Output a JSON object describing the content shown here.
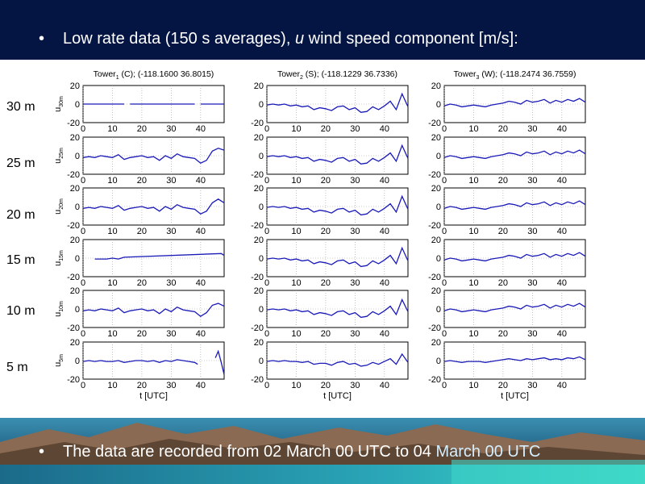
{
  "slide": {
    "bullet_glyph": "•",
    "header_text_before": "Low rate data (150 s averages), ",
    "header_text_var": "u",
    "header_text_after": " wind speed component [m/s]:",
    "footer_text_part1": "The data are recorded from 02 March 00 UTC to 04",
    "footer_text_part2": " March 00 UTC",
    "height_labels": [
      "30 m",
      "25 m",
      "20 m",
      "15 m",
      "10 m",
      "5 m"
    ],
    "colors": {
      "header": "#051543",
      "line": "#1a1ab8",
      "grid": "#999999"
    }
  },
  "chart_data": {
    "type": "line",
    "x_label": "t [UTC]",
    "xlim": [
      0,
      48
    ],
    "ylim": [
      -20,
      20
    ],
    "x_ticks": [
      0,
      10,
      20,
      30,
      40
    ],
    "y_ticks": [
      20,
      0,
      -20
    ],
    "y_tick_labels": [
      "20",
      "0",
      "-20"
    ],
    "ylabels": [
      {
        "base": "u",
        "sub": "30m"
      },
      {
        "base": "u",
        "sub": "25m"
      },
      {
        "base": "u",
        "sub": "20m"
      },
      {
        "base": "u",
        "sub": "15m"
      },
      {
        "base": "u",
        "sub": "10m"
      },
      {
        "base": "u",
        "sub": "5m"
      }
    ],
    "towers": [
      {
        "name": "Tower",
        "index": "1",
        "rest": " (C); (-118.1600 36.8015)"
      },
      {
        "name": "Tower",
        "index": "2",
        "rest": " (S); (-118.1229 36.7336)"
      },
      {
        "name": "Tower",
        "index": "3",
        "rest": " (W); (-118.2474 36.7559)"
      }
    ],
    "series": {
      "tower1": {
        "30m": {
          "x": [
            0,
            4,
            8,
            12,
            14,
            15,
            16,
            20,
            24,
            28,
            32,
            36,
            38,
            39,
            40,
            44,
            48
          ],
          "y": [
            0,
            0,
            0,
            0,
            0,
            null,
            0,
            0,
            0,
            0,
            0,
            0,
            0,
            null,
            0,
            0,
            0
          ]
        },
        "25m": {
          "x": [
            0,
            2,
            4,
            6,
            8,
            10,
            12,
            14,
            16,
            18,
            20,
            22,
            24,
            26,
            28,
            30,
            32,
            34,
            36,
            38,
            40,
            42,
            44,
            46,
            48
          ],
          "y": [
            -2,
            -1,
            -2,
            0,
            -1,
            -2,
            1,
            -4,
            -2,
            -1,
            0,
            -2,
            -1,
            -5,
            0,
            -3,
            2,
            -1,
            -2,
            -3,
            -8,
            -5,
            5,
            8,
            6
          ]
        },
        "20m": {
          "x": [
            0,
            2,
            4,
            6,
            8,
            10,
            12,
            14,
            16,
            18,
            20,
            22,
            24,
            26,
            28,
            30,
            32,
            34,
            36,
            38,
            40,
            42,
            44,
            46,
            48
          ],
          "y": [
            -2,
            -1,
            -2,
            0,
            -1,
            -2,
            1,
            -4,
            -2,
            -1,
            0,
            -2,
            -1,
            -5,
            0,
            -3,
            2,
            -1,
            -2,
            -3,
            -8,
            -5,
            4,
            8,
            4
          ]
        },
        "15m": {
          "x": [
            4,
            6,
            8,
            10,
            12,
            13,
            14,
            47,
            48
          ],
          "y": [
            -1,
            -1,
            -1,
            0,
            -1,
            0,
            1,
            5,
            3
          ]
        },
        "10m": {
          "x": [
            0,
            2,
            4,
            6,
            8,
            10,
            12,
            14,
            16,
            18,
            20,
            22,
            24,
            26,
            28,
            30,
            32,
            34,
            36,
            38,
            40,
            42,
            44,
            46,
            48
          ],
          "y": [
            -2,
            -1,
            -2,
            0,
            -1,
            -2,
            1,
            -4,
            -2,
            -1,
            0,
            -2,
            -1,
            -5,
            0,
            -3,
            2,
            -1,
            -2,
            -3,
            -8,
            -4,
            4,
            6,
            3
          ]
        },
        "5m": {
          "x": [
            0,
            2,
            4,
            6,
            8,
            10,
            12,
            14,
            16,
            18,
            20,
            22,
            24,
            26,
            28,
            30,
            32,
            34,
            36,
            38,
            39,
            40,
            45,
            46,
            47,
            48
          ],
          "y": [
            -1,
            0,
            -1,
            0,
            -1,
            -1,
            0,
            -2,
            -1,
            0,
            0,
            -1,
            0,
            -2,
            0,
            -1,
            1,
            0,
            -1,
            -2,
            -4,
            null,
            3,
            10,
            -2,
            -15
          ]
        }
      },
      "tower2": {
        "30m": {
          "x": [
            0,
            2,
            4,
            6,
            8,
            10,
            12,
            14,
            16,
            18,
            20,
            22,
            24,
            26,
            28,
            30,
            32,
            34,
            36,
            38,
            40,
            42,
            44,
            46,
            48
          ],
          "y": [
            -1,
            0,
            -1,
            0,
            -2,
            -1,
            -3,
            -2,
            -6,
            -4,
            -5,
            -7,
            -3,
            -2,
            -6,
            -4,
            -9,
            -8,
            -3,
            -6,
            -2,
            3,
            -6,
            11,
            -3
          ]
        },
        "25m": {
          "x": [
            0,
            2,
            4,
            6,
            8,
            10,
            12,
            14,
            16,
            18,
            20,
            22,
            24,
            26,
            28,
            30,
            32,
            34,
            36,
            38,
            40,
            42,
            44,
            46,
            48
          ],
          "y": [
            -1,
            0,
            -1,
            0,
            -2,
            -1,
            -3,
            -2,
            -6,
            -4,
            -5,
            -7,
            -3,
            -2,
            -6,
            -4,
            -9,
            -8,
            -3,
            -6,
            -2,
            3,
            -6,
            11,
            -3
          ]
        },
        "20m": {
          "x": [
            0,
            2,
            4,
            6,
            8,
            10,
            12,
            14,
            16,
            18,
            20,
            22,
            24,
            26,
            28,
            30,
            32,
            34,
            36,
            38,
            40,
            42,
            44,
            46,
            48
          ],
          "y": [
            -1,
            0,
            -1,
            0,
            -2,
            -1,
            -3,
            -2,
            -6,
            -4,
            -5,
            -7,
            -3,
            -2,
            -6,
            -4,
            -9,
            -8,
            -3,
            -6,
            -2,
            3,
            -6,
            11,
            -3
          ]
        },
        "15m": {
          "x": [
            0,
            2,
            4,
            6,
            8,
            10,
            12,
            14,
            16,
            18,
            20,
            22,
            24,
            26,
            28,
            30,
            32,
            34,
            36,
            38,
            40,
            42,
            44,
            46,
            48
          ],
          "y": [
            -1,
            0,
            -1,
            0,
            -2,
            -1,
            -3,
            -2,
            -6,
            -4,
            -5,
            -7,
            -3,
            -2,
            -6,
            -4,
            -9,
            -8,
            -3,
            -6,
            -2,
            3,
            -6,
            11,
            -3
          ]
        },
        "10m": {
          "x": [
            0,
            2,
            4,
            6,
            8,
            10,
            12,
            14,
            16,
            18,
            20,
            22,
            24,
            26,
            28,
            30,
            32,
            34,
            36,
            38,
            40,
            42,
            44,
            46,
            48
          ],
          "y": [
            -1,
            0,
            -1,
            0,
            -2,
            -1,
            -3,
            -2,
            -6,
            -4,
            -5,
            -7,
            -3,
            -2,
            -6,
            -4,
            -9,
            -8,
            -3,
            -6,
            -2,
            3,
            -6,
            10,
            -3
          ]
        },
        "5m": {
          "x": [
            0,
            2,
            4,
            6,
            8,
            10,
            12,
            14,
            16,
            18,
            20,
            22,
            24,
            26,
            28,
            30,
            32,
            34,
            36,
            38,
            40,
            42,
            44,
            46,
            48
          ],
          "y": [
            -1,
            0,
            -1,
            0,
            -1,
            -1,
            -2,
            -1,
            -4,
            -3,
            -3,
            -5,
            -2,
            -1,
            -4,
            -3,
            -6,
            -5,
            -2,
            -4,
            -1,
            2,
            -4,
            7,
            -2
          ]
        }
      },
      "tower3": {
        "30m": {
          "x": [
            0,
            2,
            4,
            6,
            8,
            10,
            12,
            14,
            16,
            18,
            20,
            22,
            24,
            26,
            28,
            30,
            32,
            34,
            36,
            38,
            40,
            42,
            44,
            46,
            48
          ],
          "y": [
            -2,
            0,
            -1,
            -3,
            -2,
            -1,
            -2,
            -3,
            -1,
            0,
            1,
            3,
            2,
            0,
            4,
            2,
            3,
            5,
            1,
            4,
            2,
            5,
            3,
            6,
            2
          ]
        },
        "25m": {
          "x": [
            0,
            2,
            4,
            6,
            8,
            10,
            12,
            14,
            16,
            18,
            20,
            22,
            24,
            26,
            28,
            30,
            32,
            34,
            36,
            38,
            40,
            42,
            44,
            46,
            48
          ],
          "y": [
            -2,
            0,
            -1,
            -3,
            -2,
            -1,
            -2,
            -3,
            -1,
            0,
            1,
            3,
            2,
            0,
            4,
            2,
            3,
            5,
            1,
            4,
            2,
            5,
            3,
            6,
            2
          ]
        },
        "20m": {
          "x": [
            0,
            2,
            4,
            6,
            8,
            10,
            12,
            14,
            16,
            18,
            20,
            22,
            24,
            26,
            28,
            30,
            32,
            34,
            36,
            38,
            40,
            42,
            44,
            46,
            48
          ],
          "y": [
            -2,
            0,
            -1,
            -3,
            -2,
            -1,
            -2,
            -3,
            -1,
            0,
            1,
            3,
            2,
            0,
            4,
            2,
            3,
            5,
            1,
            4,
            2,
            5,
            3,
            6,
            2
          ]
        },
        "15m": {
          "x": [
            0,
            2,
            4,
            6,
            8,
            10,
            12,
            14,
            16,
            18,
            20,
            22,
            24,
            26,
            28,
            30,
            32,
            34,
            36,
            38,
            40,
            42,
            44,
            46,
            48
          ],
          "y": [
            -2,
            0,
            -1,
            -3,
            -2,
            -1,
            -2,
            -3,
            -1,
            0,
            1,
            3,
            2,
            0,
            4,
            2,
            3,
            5,
            1,
            4,
            2,
            5,
            3,
            6,
            2
          ]
        },
        "10m": {
          "x": [
            0,
            2,
            4,
            6,
            8,
            10,
            12,
            14,
            16,
            18,
            20,
            22,
            24,
            26,
            28,
            30,
            32,
            34,
            36,
            38,
            40,
            42,
            44,
            46,
            48
          ],
          "y": [
            -2,
            0,
            -1,
            -3,
            -2,
            -1,
            -2,
            -3,
            -1,
            0,
            1,
            3,
            2,
            0,
            4,
            2,
            3,
            5,
            1,
            4,
            2,
            5,
            3,
            6,
            2
          ]
        },
        "5m": {
          "x": [
            0,
            2,
            4,
            6,
            8,
            10,
            12,
            14,
            16,
            18,
            20,
            22,
            24,
            26,
            28,
            30,
            32,
            34,
            36,
            38,
            40,
            42,
            44,
            46,
            48
          ],
          "y": [
            -1,
            0,
            -1,
            -2,
            -1,
            -1,
            -1,
            -2,
            -1,
            0,
            1,
            2,
            1,
            0,
            2,
            1,
            2,
            3,
            1,
            2,
            1,
            3,
            2,
            4,
            1
          ]
        }
      }
    }
  }
}
